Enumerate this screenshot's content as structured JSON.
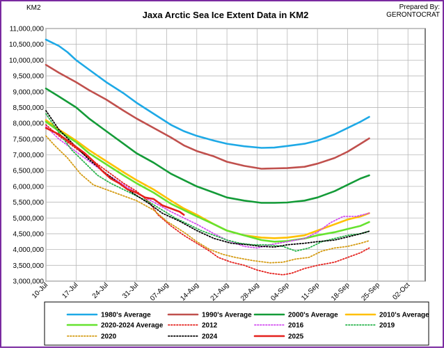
{
  "chart_data": {
    "type": "line",
    "title": "Jaxa Arctic Sea Ice Extent Data in KM2",
    "ylabel": "KM2",
    "credit": [
      "Prepared By:",
      "GERONTOCRAT"
    ],
    "xlabel": "",
    "x_labels": [
      "10-Jul",
      "17-Jul",
      "24-Jul",
      "31-Jul",
      "07-Aug",
      "14-Aug",
      "21-Aug",
      "28-Aug",
      "04-Sep",
      "11-Sep",
      "18-Sep",
      "25-Sep",
      "02-Oct"
    ],
    "xlim": [
      0,
      88
    ],
    "ylim": [
      3000000,
      11000000
    ],
    "y_ticks": [
      3000000,
      3500000,
      4000000,
      4500000,
      5000000,
      5500000,
      6000000,
      6500000,
      7000000,
      7500000,
      8000000,
      8500000,
      9000000,
      9500000,
      10000000,
      10500000,
      11000000
    ],
    "y_tick_labels": [
      "3,000,000",
      "3,500,000",
      "4,000,000",
      "4,500,000",
      "5,000,000",
      "5,500,000",
      "6,000,000",
      "6,500,000",
      "7,000,000",
      "7,500,000",
      "8,000,000",
      "8,500,000",
      "9,000,000",
      "9,500,000",
      "10,000,000",
      "10,500,000",
      "11,000,000"
    ],
    "grid": true,
    "legend_position": "bottom",
    "series": [
      {
        "name": "1980's Average",
        "color": "#1ea9e6",
        "style": "solid",
        "points": [
          [
            0,
            10650000
          ],
          [
            3,
            10450000
          ],
          [
            5,
            10250000
          ],
          [
            7,
            10000000
          ],
          [
            10,
            9700000
          ],
          [
            14,
            9300000
          ],
          [
            18,
            8950000
          ],
          [
            21,
            8650000
          ],
          [
            25,
            8300000
          ],
          [
            29,
            7950000
          ],
          [
            32,
            7750000
          ],
          [
            35,
            7600000
          ],
          [
            39,
            7450000
          ],
          [
            42,
            7350000
          ],
          [
            46,
            7270000
          ],
          [
            50,
            7220000
          ],
          [
            53,
            7230000
          ],
          [
            56,
            7280000
          ],
          [
            60,
            7350000
          ],
          [
            63,
            7450000
          ],
          [
            67,
            7650000
          ],
          [
            70,
            7850000
          ],
          [
            73,
            8050000
          ],
          [
            75,
            8200000
          ]
        ]
      },
      {
        "name": "1990's Average",
        "color": "#c0504d",
        "style": "solid",
        "points": [
          [
            0,
            9850000
          ],
          [
            3,
            9600000
          ],
          [
            7,
            9300000
          ],
          [
            10,
            9050000
          ],
          [
            14,
            8750000
          ],
          [
            18,
            8400000
          ],
          [
            21,
            8150000
          ],
          [
            25,
            7850000
          ],
          [
            29,
            7550000
          ],
          [
            32,
            7300000
          ],
          [
            35,
            7120000
          ],
          [
            39,
            6950000
          ],
          [
            42,
            6780000
          ],
          [
            46,
            6650000
          ],
          [
            50,
            6560000
          ],
          [
            53,
            6570000
          ],
          [
            56,
            6580000
          ],
          [
            60,
            6620000
          ],
          [
            63,
            6720000
          ],
          [
            67,
            6900000
          ],
          [
            70,
            7100000
          ],
          [
            73,
            7350000
          ],
          [
            75,
            7520000
          ]
        ]
      },
      {
        "name": "2000's Average",
        "color": "#149b38",
        "style": "solid",
        "points": [
          [
            0,
            9100000
          ],
          [
            3,
            8850000
          ],
          [
            7,
            8500000
          ],
          [
            10,
            8150000
          ],
          [
            14,
            7750000
          ],
          [
            18,
            7350000
          ],
          [
            21,
            7050000
          ],
          [
            25,
            6750000
          ],
          [
            29,
            6400000
          ],
          [
            32,
            6200000
          ],
          [
            35,
            6000000
          ],
          [
            39,
            5800000
          ],
          [
            42,
            5650000
          ],
          [
            46,
            5550000
          ],
          [
            50,
            5480000
          ],
          [
            53,
            5480000
          ],
          [
            56,
            5490000
          ],
          [
            60,
            5550000
          ],
          [
            63,
            5650000
          ],
          [
            67,
            5850000
          ],
          [
            70,
            6050000
          ],
          [
            73,
            6250000
          ],
          [
            75,
            6350000
          ]
        ]
      },
      {
        "name": "2010's Average",
        "color": "#ffc000",
        "style": "solid",
        "points": [
          [
            0,
            8100000
          ],
          [
            3,
            7800000
          ],
          [
            7,
            7450000
          ],
          [
            10,
            7150000
          ],
          [
            14,
            6800000
          ],
          [
            18,
            6450000
          ],
          [
            21,
            6200000
          ],
          [
            25,
            5900000
          ],
          [
            29,
            5550000
          ],
          [
            32,
            5300000
          ],
          [
            35,
            5100000
          ],
          [
            39,
            4800000
          ],
          [
            42,
            4600000
          ],
          [
            46,
            4450000
          ],
          [
            50,
            4380000
          ],
          [
            53,
            4360000
          ],
          [
            56,
            4380000
          ],
          [
            60,
            4450000
          ],
          [
            63,
            4600000
          ],
          [
            67,
            4800000
          ],
          [
            70,
            4950000
          ],
          [
            73,
            5050000
          ],
          [
            75,
            5150000
          ]
        ]
      },
      {
        "name": "2020-2024 Average",
        "color": "#66e22f",
        "style": "solid",
        "points": [
          [
            0,
            8050000
          ],
          [
            3,
            7750000
          ],
          [
            7,
            7400000
          ],
          [
            10,
            7050000
          ],
          [
            14,
            6700000
          ],
          [
            18,
            6350000
          ],
          [
            21,
            6100000
          ],
          [
            25,
            5800000
          ],
          [
            29,
            5450000
          ],
          [
            32,
            5250000
          ],
          [
            35,
            5050000
          ],
          [
            39,
            4800000
          ],
          [
            42,
            4600000
          ],
          [
            46,
            4450000
          ],
          [
            50,
            4300000
          ],
          [
            53,
            4250000
          ],
          [
            56,
            4270000
          ],
          [
            60,
            4350000
          ],
          [
            63,
            4450000
          ],
          [
            67,
            4550000
          ],
          [
            70,
            4650000
          ],
          [
            73,
            4750000
          ],
          [
            75,
            4870000
          ]
        ]
      },
      {
        "name": "2012",
        "color": "#e4201c",
        "style": "dotted",
        "points": [
          [
            0,
            7950000
          ],
          [
            3,
            7600000
          ],
          [
            7,
            7200000
          ],
          [
            10,
            6900000
          ],
          [
            14,
            6500000
          ],
          [
            18,
            6100000
          ],
          [
            21,
            5850000
          ],
          [
            24,
            5500000
          ],
          [
            26,
            5100000
          ],
          [
            29,
            4750000
          ],
          [
            32,
            4450000
          ],
          [
            35,
            4200000
          ],
          [
            38,
            3950000
          ],
          [
            40,
            3750000
          ],
          [
            43,
            3600000
          ],
          [
            46,
            3500000
          ],
          [
            49,
            3350000
          ],
          [
            52,
            3250000
          ],
          [
            55,
            3200000
          ],
          [
            57,
            3250000
          ],
          [
            60,
            3400000
          ],
          [
            63,
            3500000
          ],
          [
            67,
            3600000
          ],
          [
            70,
            3750000
          ],
          [
            73,
            3900000
          ],
          [
            75,
            4050000
          ]
        ]
      },
      {
        "name": "2016",
        "color": "#d24cf0",
        "style": "dotted",
        "points": [
          [
            0,
            7900000
          ],
          [
            3,
            7500000
          ],
          [
            7,
            7100000
          ],
          [
            10,
            6800000
          ],
          [
            14,
            6400000
          ],
          [
            18,
            6050000
          ],
          [
            21,
            5800000
          ],
          [
            25,
            5500000
          ],
          [
            29,
            5200000
          ],
          [
            32,
            5000000
          ],
          [
            35,
            4800000
          ],
          [
            39,
            4500000
          ],
          [
            42,
            4300000
          ],
          [
            46,
            4100000
          ],
          [
            49,
            4050000
          ],
          [
            52,
            4150000
          ],
          [
            56,
            4250000
          ],
          [
            60,
            4350000
          ],
          [
            63,
            4550000
          ],
          [
            66,
            4850000
          ],
          [
            69,
            5050000
          ],
          [
            72,
            5050000
          ],
          [
            75,
            5150000
          ]
        ]
      },
      {
        "name": "2019",
        "color": "#26b34a",
        "style": "dotted",
        "points": [
          [
            0,
            8300000
          ],
          [
            3,
            7700000
          ],
          [
            6,
            7150000
          ],
          [
            9,
            6750000
          ],
          [
            12,
            6350000
          ],
          [
            15,
            6100000
          ],
          [
            18,
            5900000
          ],
          [
            21,
            5700000
          ],
          [
            24,
            5500000
          ],
          [
            27,
            5250000
          ],
          [
            30,
            5000000
          ],
          [
            33,
            4800000
          ],
          [
            36,
            4600000
          ],
          [
            39,
            4450000
          ],
          [
            42,
            4300000
          ],
          [
            45,
            4200000
          ],
          [
            48,
            4150000
          ],
          [
            51,
            4150000
          ],
          [
            55,
            4100000
          ],
          [
            58,
            3950000
          ],
          [
            61,
            4050000
          ],
          [
            64,
            4250000
          ],
          [
            67,
            4350000
          ],
          [
            70,
            4450000
          ],
          [
            73,
            4500000
          ],
          [
            75,
            4580000
          ]
        ]
      },
      {
        "name": "2020",
        "color": "#d49a10",
        "style": "dotted",
        "points": [
          [
            0,
            7600000
          ],
          [
            2,
            7300000
          ],
          [
            5,
            6900000
          ],
          [
            8,
            6400000
          ],
          [
            11,
            6050000
          ],
          [
            14,
            5900000
          ],
          [
            18,
            5700000
          ],
          [
            21,
            5550000
          ],
          [
            25,
            5250000
          ],
          [
            28,
            4900000
          ],
          [
            32,
            4550000
          ],
          [
            35,
            4250000
          ],
          [
            38,
            4000000
          ],
          [
            41,
            3850000
          ],
          [
            44,
            3750000
          ],
          [
            48,
            3650000
          ],
          [
            52,
            3580000
          ],
          [
            55,
            3600000
          ],
          [
            58,
            3700000
          ],
          [
            61,
            3750000
          ],
          [
            64,
            3950000
          ],
          [
            67,
            4050000
          ],
          [
            70,
            4100000
          ],
          [
            73,
            4200000
          ],
          [
            75,
            4280000
          ]
        ]
      },
      {
        "name": "2024",
        "color": "#000000",
        "style": "dotted",
        "points": [
          [
            0,
            8400000
          ],
          [
            3,
            7800000
          ],
          [
            7,
            7250000
          ],
          [
            10,
            6850000
          ],
          [
            14,
            6400000
          ],
          [
            17,
            6100000
          ],
          [
            20,
            5800000
          ],
          [
            24,
            5450000
          ],
          [
            27,
            5150000
          ],
          [
            31,
            4900000
          ],
          [
            35,
            4600000
          ],
          [
            39,
            4350000
          ],
          [
            43,
            4200000
          ],
          [
            47,
            4150000
          ],
          [
            50,
            4100000
          ],
          [
            53,
            4080000
          ],
          [
            56,
            4150000
          ],
          [
            60,
            4200000
          ],
          [
            63,
            4250000
          ],
          [
            67,
            4300000
          ],
          [
            70,
            4400000
          ],
          [
            73,
            4500000
          ],
          [
            75,
            4580000
          ]
        ]
      },
      {
        "name": "2025",
        "color": "#e4201c",
        "style": "solid",
        "points": [
          [
            0,
            7850000
          ],
          [
            3,
            7650000
          ],
          [
            5,
            7450000
          ],
          [
            7,
            7250000
          ],
          [
            9,
            7050000
          ],
          [
            11,
            6800000
          ],
          [
            13,
            6500000
          ],
          [
            15,
            6250000
          ],
          [
            17,
            6100000
          ],
          [
            19,
            5900000
          ],
          [
            21,
            5800000
          ],
          [
            23,
            5650000
          ],
          [
            25,
            5600000
          ],
          [
            27,
            5400000
          ],
          [
            29,
            5300000
          ],
          [
            31,
            5200000
          ],
          [
            32,
            5100000
          ]
        ]
      }
    ]
  }
}
